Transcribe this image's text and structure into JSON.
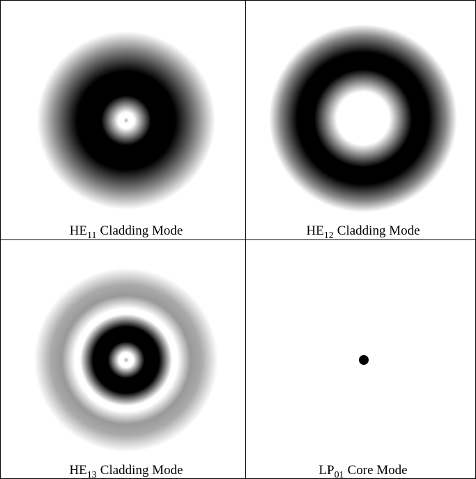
{
  "panels": [
    {
      "label": {
        "main": "HE",
        "sub": "11",
        "rest": "Cladding Mode"
      }
    },
    {
      "label": {
        "main": "HE",
        "sub": "12",
        "rest": "Cladding Mode"
      }
    },
    {
      "label": {
        "main": "HE",
        "sub": "13",
        "rest": "Cladding Mode"
      }
    },
    {
      "label": {
        "main": "LP",
        "sub": "01",
        "rest": "Core Mode"
      }
    }
  ]
}
